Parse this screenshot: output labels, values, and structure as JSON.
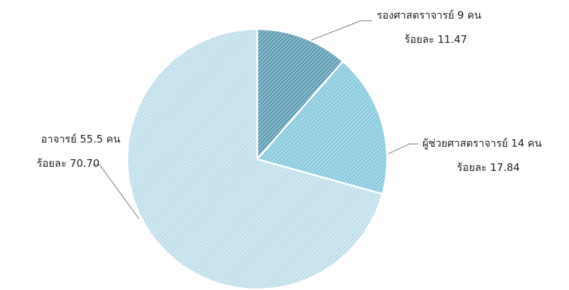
{
  "chart_data": {
    "type": "pie",
    "start_angle_deg": 0,
    "direction": "clockwise",
    "legend": "none",
    "slices": [
      {
        "category": "รองศาสตราจารย์",
        "count": 9,
        "percent": 11.47,
        "label_line1": "รองศาสตราจารย์ 9 คน",
        "label_line2": "ร้อยละ 11.47",
        "color": "#4f93ad",
        "pattern": "dense-diagonal-hatch"
      },
      {
        "category": "ผู้ช่วยศาสตราจารย์",
        "count": 14,
        "percent": 17.84,
        "label_line1": "ผู้ช่วยศาสตราจารย์ 14 คน",
        "label_line2": "ร้อยละ 17.84",
        "color": "#7cc4da",
        "pattern": "dense-diagonal-hatch"
      },
      {
        "category": "อาจารย์",
        "count": 55.5,
        "percent": 70.7,
        "label_line1": "อาจารย์ 55.5 คน",
        "label_line2": "ร้อยละ 70.70",
        "color": "#b5d9e7",
        "pattern": "light-diagonal-hatch"
      }
    ]
  }
}
